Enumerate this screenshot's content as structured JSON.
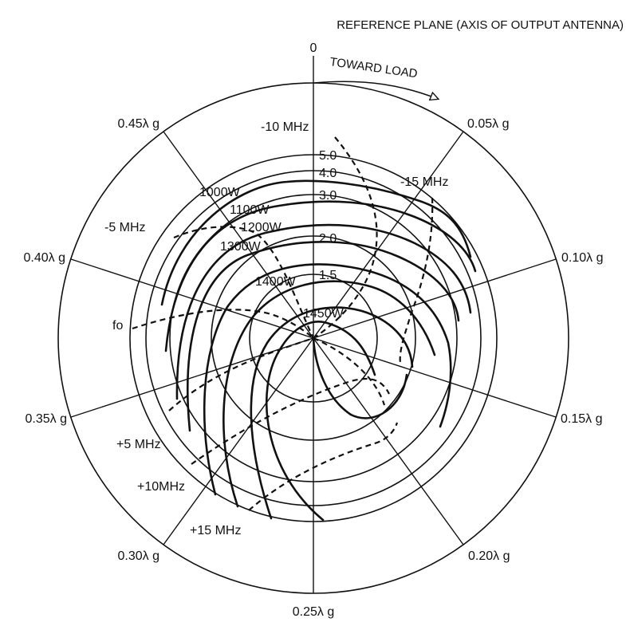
{
  "header": {
    "reference_plane": "REFERENCE PLANE (AXIS OF OUTPUT ANTENNA)"
  },
  "direction": {
    "toward_load": "TOWARD LOAD"
  },
  "wavelength_labels": {
    "w000": "0",
    "w005": "0.05λ g",
    "w010": "0.10λ g",
    "w015": "0.15λ g",
    "w020": "0.20λ g",
    "w025": "0.25λ g",
    "w030": "0.30λ g",
    "w035": "0.35λ g",
    "w040": "0.40λ g",
    "w045": "0.45λ g"
  },
  "vswr_labels": {
    "v15": "1.5",
    "v20": "2.0",
    "v30": "3.0",
    "v40": "4.0",
    "v50": "5.0"
  },
  "power_labels": {
    "p1000": "1000W",
    "p1100": "1100W",
    "p1200": "1200W",
    "p1300": "1300W",
    "p1400": "1400W",
    "p1450": "1450W"
  },
  "frequency_labels": {
    "fm10": "-10 MHz",
    "fm15": "-15 MHz",
    "fm5": "-5 MHz",
    "f0": "fo",
    "fp5": "+5 MHz",
    "fp10": "+10MHz",
    "fp15": "+15 MHz"
  }
}
